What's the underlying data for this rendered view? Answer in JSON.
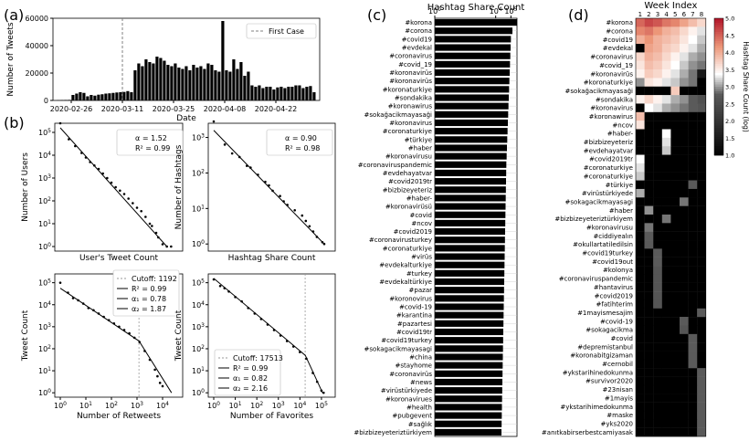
{
  "panel_labels": {
    "a": "(a)",
    "b": "(b)",
    "c": "(c)",
    "d": "(d)"
  },
  "colors": {
    "bar": "#000000",
    "axis": "#000000",
    "grid": "#cccccc",
    "first_case_line": "#808080"
  },
  "chart_data": [
    {
      "id": "a",
      "type": "bar",
      "title": "",
      "xlabel": "Date",
      "ylabel": "Number of Tweets",
      "ylim": [
        0,
        60000
      ],
      "y_ticks": [
        "0",
        "20000",
        "40000",
        "60000"
      ],
      "x_ticks": [
        "2020-02-26",
        "2020-03-11",
        "2020-03-25",
        "2020-04-08",
        "2020-04-22"
      ],
      "x_tick_days": [
        0,
        14,
        28,
        42,
        56
      ],
      "legend": "First Case",
      "first_case_day": 14,
      "start_day_offset": -4,
      "values": [
        200,
        300,
        350,
        400,
        4000,
        5000,
        6000,
        5500,
        3000,
        4000,
        3500,
        4200,
        4500,
        5000,
        5200,
        5500,
        5800,
        6000,
        6200,
        6800,
        6000,
        22000,
        27000,
        25000,
        30000,
        28000,
        27000,
        32000,
        31000,
        29000,
        26000,
        25000,
        27000,
        24000,
        23000,
        25000,
        22000,
        26000,
        24000,
        25000,
        23000,
        27000,
        26000,
        22000,
        21000,
        58000,
        22000,
        21000,
        30000,
        23000,
        28000,
        18000,
        21000,
        11000,
        10000,
        11000,
        9000,
        10000,
        10000,
        8000,
        9500,
        10000,
        9000,
        10000,
        10000,
        11000,
        11000,
        9000,
        10000,
        10500,
        6000
      ]
    },
    {
      "id": "b1",
      "type": "scatter",
      "xlabel": "User's Tweet Count",
      "ylabel": "Number of Users",
      "y_ticks": [
        "10^0",
        "10^1",
        "10^2",
        "10^3",
        "10^4",
        "10^5"
      ],
      "legend": [
        "α = 1.52",
        "R² = 0.99"
      ],
      "x_log_range": [
        0,
        2.7
      ],
      "fit": [
        [
          0,
          5.2
        ],
        [
          2.5,
          0
        ]
      ],
      "points": [
        [
          0,
          5.4
        ],
        [
          0.2,
          4.7
        ],
        [
          0.35,
          4.4
        ],
        [
          0.5,
          4.1
        ],
        [
          0.6,
          3.9
        ],
        [
          0.7,
          3.7
        ],
        [
          0.8,
          3.55
        ],
        [
          0.9,
          3.4
        ],
        [
          1.0,
          3.2
        ],
        [
          1.1,
          3.0
        ],
        [
          1.2,
          2.8
        ],
        [
          1.3,
          2.6
        ],
        [
          1.4,
          2.45
        ],
        [
          1.5,
          2.3
        ],
        [
          1.6,
          2.1
        ],
        [
          1.7,
          1.9
        ],
        [
          1.8,
          1.7
        ],
        [
          1.9,
          1.55
        ],
        [
          2.0,
          1.3
        ],
        [
          2.1,
          1.0
        ],
        [
          2.15,
          0.9
        ],
        [
          2.25,
          0.6
        ],
        [
          2.3,
          0.4
        ],
        [
          2.4,
          0.1
        ],
        [
          2.5,
          0.0
        ],
        [
          2.6,
          0.0
        ]
      ]
    },
    {
      "id": "b2",
      "type": "scatter",
      "xlabel": "Hashtag Share Count",
      "ylabel": "Number of Hashtags",
      "y_ticks": [
        "10^0",
        "10^1",
        "10^2",
        "10^3"
      ],
      "legend": [
        "α = 0.90",
        "R² = 0.98"
      ],
      "x_log_range": [
        0,
        3.1
      ],
      "fit": [
        [
          0,
          3.2
        ],
        [
          3.0,
          0
        ]
      ],
      "points": [
        [
          0,
          3.45
        ],
        [
          0.3,
          2.8
        ],
        [
          0.5,
          2.55
        ],
        [
          0.7,
          2.45
        ],
        [
          0.9,
          2.2
        ],
        [
          1.0,
          2.15
        ],
        [
          1.2,
          1.95
        ],
        [
          1.4,
          1.75
        ],
        [
          1.5,
          1.65
        ],
        [
          1.6,
          1.5
        ],
        [
          1.8,
          1.35
        ],
        [
          1.9,
          1.2
        ],
        [
          2.0,
          1.1
        ],
        [
          2.2,
          0.95
        ],
        [
          2.4,
          0.8
        ],
        [
          2.5,
          0.65
        ],
        [
          2.6,
          0.5
        ],
        [
          2.7,
          0.35
        ],
        [
          2.8,
          0.2
        ],
        [
          2.95,
          0.05
        ],
        [
          3.0,
          0.0
        ]
      ]
    },
    {
      "id": "b3",
      "type": "scatter",
      "xlabel": "Number of Retweets",
      "ylabel": "Tweet Count",
      "x_ticks": [
        "10^0",
        "10^1",
        "10^2",
        "10^3",
        "10^4"
      ],
      "y_ticks": [
        "10^0",
        "10^1",
        "10^2",
        "10^3",
        "10^4",
        "10^5"
      ],
      "legend": [
        "Cutoff: 1192",
        "R² = 0.99",
        "α₁ = 0.78",
        "α₂ = 1.87"
      ],
      "x_log_range": [
        0,
        4.5
      ],
      "cutoff_log": 3.076,
      "fit": [
        [
          0,
          4.75
        ],
        [
          3.08,
          2.35
        ],
        [
          4.35,
          0
        ]
      ],
      "points": [
        [
          0,
          5.0
        ],
        [
          0.3,
          4.55
        ],
        [
          0.5,
          4.3
        ],
        [
          0.7,
          4.2
        ],
        [
          0.9,
          4.05
        ],
        [
          1.1,
          3.85
        ],
        [
          1.3,
          3.75
        ],
        [
          1.5,
          3.6
        ],
        [
          1.7,
          3.45
        ],
        [
          1.9,
          3.3
        ],
        [
          2.1,
          3.15
        ],
        [
          2.3,
          3.0
        ],
        [
          2.5,
          2.85
        ],
        [
          2.7,
          2.7
        ],
        [
          2.9,
          2.5
        ],
        [
          3.1,
          2.3
        ],
        [
          3.3,
          1.9
        ],
        [
          3.5,
          1.5
        ],
        [
          3.7,
          1.05
        ],
        [
          3.8,
          0.75
        ],
        [
          3.9,
          0.45
        ],
        [
          4.0,
          0.3
        ]
      ]
    },
    {
      "id": "b4",
      "type": "scatter",
      "xlabel": "Number of Favorites",
      "ylabel": "Tweet Count",
      "x_ticks": [
        "10^0",
        "10^1",
        "10^2",
        "10^3",
        "10^4",
        "10^5"
      ],
      "y_ticks": [
        "10^0",
        "10^1",
        "10^2",
        "10^3",
        "10^4",
        "10^5"
      ],
      "legend": [
        "Cutoff: 17513",
        "R² = 0.99",
        "α₁ = 0.82",
        "α₂ = 2.16"
      ],
      "x_log_range": [
        0,
        5.3
      ],
      "cutoff_log": 4.243,
      "fit": [
        [
          0,
          5.2
        ],
        [
          4.25,
          1.7
        ],
        [
          5.05,
          0
        ]
      ],
      "points": [
        [
          0,
          5.15
        ],
        [
          0.3,
          4.85
        ],
        [
          0.5,
          4.75
        ],
        [
          0.7,
          4.6
        ],
        [
          1.0,
          4.35
        ],
        [
          1.3,
          4.15
        ],
        [
          1.6,
          3.85
        ],
        [
          1.9,
          3.6
        ],
        [
          2.2,
          3.35
        ],
        [
          2.5,
          3.1
        ],
        [
          2.8,
          2.85
        ],
        [
          3.1,
          2.6
        ],
        [
          3.4,
          2.35
        ],
        [
          3.7,
          2.1
        ],
        [
          4.0,
          1.85
        ],
        [
          4.3,
          1.55
        ],
        [
          4.6,
          0.9
        ],
        [
          4.8,
          0.5
        ],
        [
          5.0,
          0.1
        ],
        [
          5.1,
          0.0
        ]
      ]
    },
    {
      "id": "c",
      "type": "bar",
      "orientation": "horizontal",
      "title": "Hashtag Share Count",
      "x_scale": "log",
      "x_ticks": [
        "10^0",
        "10^4",
        "10^5"
      ],
      "categories": [
        "#korona",
        "#corona",
        "#covid19",
        "#evdekal",
        "#coronavirus",
        "#covid_19",
        "#koronavirüs",
        "#koronavirüs",
        "#koronaturkiye",
        "#sondakika",
        "#koronawirus",
        "#sokağacikmayasaği",
        "#koronavirus",
        "#coronaturkiye",
        "#türkiye",
        "#haber",
        "#koronavirusu",
        "#coronaviruspandemic",
        "#evdehayatvar",
        "#covid2019tr",
        "#bizbizeyeteriz",
        "#haber-",
        "#koronavirüsü",
        "#covid",
        "#ncov",
        "#covid2019",
        "#coronavirusturkey",
        "#coronaturkiye",
        "#virüs",
        "#evdekalturkiye",
        "#turkey",
        "#evdekaltürkiye",
        "#pazar",
        "#koronovirus",
        "#covid-19",
        "#karantina",
        "#pazartesi",
        "#covid19tr",
        "#covid19turkey",
        "#sokagacikmayasagi",
        "#china",
        "#stayhome",
        "#coronavirüs",
        "#news",
        "#virüstürkiyede",
        "#koronavirues",
        "#health",
        "#pubgevent",
        "#sağlık",
        "#bizbizeyeteriztürkiyem"
      ],
      "values_log": [
        5.4,
        5.1,
        5.0,
        4.98,
        4.96,
        4.94,
        4.92,
        4.9,
        4.88,
        4.86,
        4.84,
        4.82,
        4.8,
        4.78,
        4.76,
        4.74,
        4.72,
        4.7,
        4.69,
        4.68,
        4.67,
        4.66,
        4.65,
        4.64,
        4.63,
        4.62,
        4.61,
        4.6,
        4.59,
        4.58,
        4.57,
        4.56,
        4.55,
        4.54,
        4.53,
        4.52,
        4.51,
        4.5,
        4.49,
        4.48,
        4.47,
        4.46,
        4.45,
        4.44,
        4.43,
        4.42,
        4.41,
        4.4,
        4.39,
        4.38
      ]
    },
    {
      "id": "d",
      "type": "heatmap",
      "title": "Week Index",
      "x_ticks": [
        "1",
        "2",
        "3",
        "4",
        "5",
        "6",
        "7",
        "8"
      ],
      "colorbar_label": "Hashtag Share Count (log)",
      "colorbar_ticks": [
        "1.0",
        "1.5",
        "2.0",
        "2.5",
        "3.0",
        "3.5",
        "4.0",
        "4.5",
        "5.0"
      ],
      "vmin": 1.0,
      "vmax": 5.0,
      "rows": [
        "#korona",
        "#corona",
        "#covid19",
        "#evdekal",
        "#coronavirus",
        "#covid_19",
        "#koronavirüs",
        "#koronaturkiye",
        "#sokağacikmayasaği",
        "#sondakika",
        "#koronavirus",
        "#koronawirus",
        "#ncov",
        "#haber-",
        "#bizbizeyeteriz",
        "#evdehayatvar",
        "#covid2019tr",
        "#coronaturkiye",
        "#coronaturkiye",
        "#türkiye",
        "#virüstürkiyede",
        "#sokagacikmayasagi",
        "#haber",
        "#bizbizeyeteriztürkiyem",
        "#koronavirusu",
        "#ciddiyealın",
        "#okullartatiledilsin",
        "#covid19turkey",
        "#covid19out",
        "#kolonya",
        "#coronaviruspandemic",
        "#hantavirus",
        "#covid2019",
        "#fatihterim",
        "#1mayismesajim",
        "#covid-19",
        "#sokagacikma",
        "#covid",
        "#depremistanbul",
        "#koronabitgizaman",
        "#cernobil",
        "#ykstarihinedokunma",
        "#survivor2020",
        "#23nisan",
        "#1mayis",
        "#ykstarihimedokunma",
        "#maske",
        "#yks2020",
        "#anıtkabirserbestcamiyasak"
      ],
      "values": [
        [
          4.5,
          4.7,
          4.6,
          4.4,
          4.3,
          4.1,
          3.9,
          3.7
        ],
        [
          4.3,
          4.4,
          4.2,
          4.0,
          3.9,
          3.7,
          3.5,
          3.3
        ],
        [
          4.0,
          4.2,
          4.0,
          3.9,
          3.8,
          3.6,
          3.4,
          3.2
        ],
        [
          1.0,
          4.1,
          4.0,
          3.8,
          3.7,
          3.5,
          3.3,
          3.1
        ],
        [
          3.7,
          4.0,
          3.9,
          3.7,
          3.5,
          3.3,
          3.1,
          3.0
        ],
        [
          3.6,
          3.9,
          3.8,
          3.6,
          3.4,
          3.2,
          3.0,
          2.9
        ],
        [
          3.5,
          3.8,
          3.7,
          3.5,
          3.3,
          3.1,
          2.9,
          1.5
        ],
        [
          3.0,
          3.6,
          3.5,
          3.3,
          3.2,
          3.0,
          2.9,
          1.0
        ],
        [
          1.0,
          1.0,
          1.0,
          1.0,
          3.8,
          1.0,
          1.0,
          1.0
        ],
        [
          3.5,
          3.7,
          3.5,
          3.3,
          3.1,
          3.0,
          2.8,
          2.6
        ],
        [
          1.0,
          3.4,
          3.3,
          3.1,
          3.0,
          2.9,
          2.8,
          2.7
        ],
        [
          3.9,
          1.0,
          1.0,
          1.0,
          1.0,
          1.0,
          1.0,
          1.0
        ],
        [
          3.6,
          1.0,
          1.0,
          1.0,
          1.0,
          1.0,
          1.0,
          1.0
        ],
        [
          1.0,
          1.0,
          1.0,
          3.4,
          1.0,
          1.0,
          1.0,
          1.0
        ],
        [
          1.0,
          1.0,
          1.0,
          3.3,
          1.0,
          1.0,
          1.0,
          1.0
        ],
        [
          1.0,
          1.0,
          1.0,
          3.2,
          1.0,
          1.0,
          1.0,
          1.0
        ],
        [
          3.4,
          1.0,
          1.0,
          1.0,
          1.0,
          1.0,
          1.0,
          1.0
        ],
        [
          3.3,
          1.0,
          1.0,
          1.0,
          1.0,
          1.0,
          1.0,
          1.0
        ],
        [
          3.2,
          1.0,
          1.0,
          1.0,
          1.0,
          1.0,
          1.0,
          1.0
        ],
        [
          1.0,
          1.0,
          1.0,
          1.0,
          1.0,
          1.0,
          2.8,
          1.0
        ],
        [
          3.1,
          1.0,
          1.0,
          1.0,
          1.0,
          1.0,
          1.0,
          1.0
        ],
        [
          1.0,
          1.0,
          1.0,
          1.0,
          1.0,
          2.9,
          1.0,
          1.0
        ],
        [
          1.0,
          3.0,
          1.0,
          1.0,
          1.0,
          1.0,
          1.0,
          1.0
        ],
        [
          1.0,
          1.0,
          1.0,
          2.9,
          1.0,
          1.0,
          1.0,
          1.0
        ],
        [
          1.0,
          2.9,
          1.0,
          1.0,
          1.0,
          1.0,
          1.0,
          1.0
        ],
        [
          1.0,
          2.8,
          1.0,
          1.0,
          1.0,
          1.0,
          1.0,
          1.0
        ],
        [
          1.0,
          2.8,
          1.0,
          1.0,
          1.0,
          1.0,
          1.0,
          1.0
        ],
        [
          1.0,
          1.0,
          2.8,
          1.0,
          1.0,
          1.0,
          1.0,
          1.0
        ],
        [
          1.0,
          1.0,
          2.8,
          1.0,
          1.0,
          1.0,
          1.0,
          1.0
        ],
        [
          1.0,
          1.0,
          2.7,
          1.0,
          1.0,
          1.0,
          1.0,
          1.0
        ],
        [
          1.0,
          1.0,
          2.7,
          1.0,
          1.0,
          1.0,
          1.0,
          1.0
        ],
        [
          1.0,
          1.0,
          2.7,
          1.0,
          1.0,
          1.0,
          1.0,
          1.0
        ],
        [
          1.0,
          1.0,
          2.7,
          1.0,
          1.0,
          1.0,
          1.0,
          1.0
        ],
        [
          1.0,
          1.0,
          2.7,
          1.0,
          1.0,
          1.0,
          1.0,
          1.0
        ],
        [
          1.0,
          1.0,
          1.0,
          1.0,
          1.0,
          1.0,
          1.0,
          2.8
        ],
        [
          1.0,
          1.0,
          1.0,
          1.0,
          1.0,
          2.8,
          1.0,
          1.0
        ],
        [
          1.0,
          1.0,
          1.0,
          1.0,
          1.0,
          2.7,
          1.0,
          1.0
        ],
        [
          1.0,
          1.0,
          1.0,
          1.0,
          1.0,
          1.0,
          2.8,
          1.0
        ],
        [
          1.0,
          1.0,
          1.0,
          1.0,
          1.0,
          1.0,
          2.8,
          1.0
        ],
        [
          1.0,
          1.0,
          1.0,
          1.0,
          1.0,
          1.0,
          2.8,
          1.0
        ],
        [
          1.0,
          1.0,
          1.0,
          1.0,
          1.0,
          1.0,
          2.8,
          1.0
        ],
        [
          1.0,
          1.0,
          1.0,
          1.0,
          1.0,
          1.0,
          1.0,
          2.8
        ],
        [
          1.0,
          1.0,
          1.0,
          1.0,
          1.0,
          1.0,
          1.0,
          2.8
        ],
        [
          1.0,
          1.0,
          1.0,
          1.0,
          1.0,
          1.0,
          1.0,
          2.8
        ],
        [
          1.0,
          1.0,
          1.0,
          1.0,
          1.0,
          1.0,
          1.0,
          2.8
        ],
        [
          1.0,
          1.0,
          1.0,
          1.0,
          1.0,
          1.0,
          1.0,
          2.8
        ],
        [
          1.0,
          1.0,
          1.0,
          1.0,
          1.0,
          1.0,
          1.0,
          2.8
        ],
        [
          1.0,
          1.0,
          1.0,
          1.0,
          1.0,
          1.0,
          1.0,
          2.8
        ],
        [
          1.0,
          1.0,
          1.0,
          1.0,
          1.0,
          1.0,
          1.0,
          2.8
        ]
      ]
    }
  ]
}
